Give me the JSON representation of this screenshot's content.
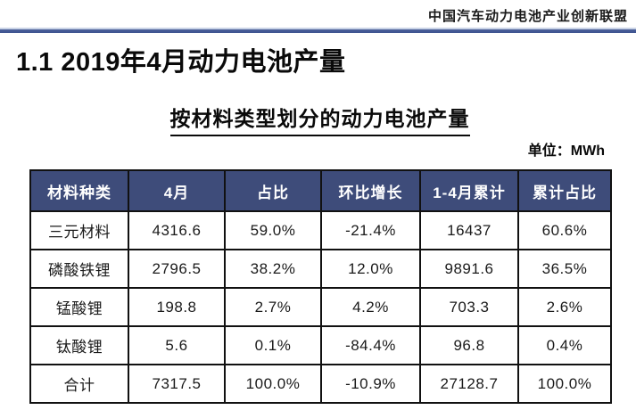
{
  "page": {
    "alliance_name": "中国汽车动力电池产业创新联盟",
    "section_title": "1.1 2019年4月动力电池产量",
    "table_title": "按材料类型划分的动力电池产量",
    "unit_label": "单位：MWh"
  },
  "colors": {
    "header_bg": "#3E4C7A",
    "header_text": "#FFFFFF",
    "rule_blue_dark": "#3D5390",
    "rule_blue_light": "#C9D3E6",
    "table_border": "#111111"
  },
  "chart_data": {
    "type": "table",
    "title": "按材料类型划分的动力电池产量",
    "unit": "MWh",
    "columns": [
      "材料种类",
      "4月",
      "占比",
      "环比增长",
      "1-4月累计",
      "累计占比"
    ],
    "rows": [
      [
        "三元材料",
        "4316.6",
        "59.0%",
        "-21.4%",
        "16437",
        "60.6%"
      ],
      [
        "磷酸铁锂",
        "2796.5",
        "38.2%",
        "12.0%",
        "9891.6",
        "36.5%"
      ],
      [
        "锰酸锂",
        "198.8",
        "2.7%",
        "4.2%",
        "703.3",
        "2.6%"
      ],
      [
        "钛酸锂",
        "5.6",
        "0.1%",
        "-84.4%",
        "96.8",
        "0.4%"
      ],
      [
        "合计",
        "7317.5",
        "100.0%",
        "-10.9%",
        "27128.7",
        "100.0%"
      ]
    ]
  }
}
